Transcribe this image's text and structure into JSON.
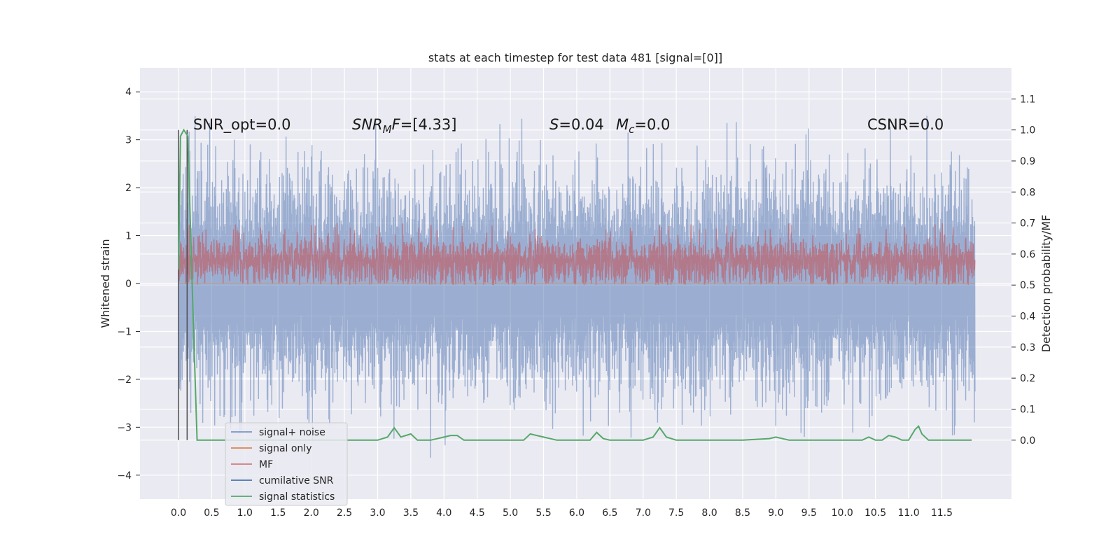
{
  "chart_data": {
    "type": "line",
    "title": "stats at each timestep for test data 481 [signal=[0]]",
    "xlabel": "",
    "ylabel": "Whitened strain",
    "y2label": "Detection probability/MF",
    "xlim": [
      -0.58,
      12.55
    ],
    "ylim": [
      -4.5,
      4.5
    ],
    "y2lim": [
      -0.19,
      1.2
    ],
    "x_ticks": [
      "0.0",
      "0.5",
      "1.0",
      "1.5",
      "2.0",
      "2.5",
      "3.0",
      "3.5",
      "4.0",
      "4.5",
      "5.0",
      "5.5",
      "6.0",
      "6.5",
      "7.0",
      "7.5",
      "8.0",
      "8.5",
      "9.0",
      "9.5",
      "10.0",
      "10.5",
      "11.0",
      "11.5"
    ],
    "y_ticks": [
      "−4",
      "−3",
      "−2",
      "−1",
      "0",
      "1",
      "2",
      "3",
      "4"
    ],
    "y2_ticks": [
      "0.0",
      "0.1",
      "0.2",
      "0.3",
      "0.4",
      "0.5",
      "0.6",
      "0.7",
      "0.8",
      "0.9",
      "1.0",
      "1.1"
    ],
    "grid": true,
    "legend_placement": "lower-left",
    "vertical_lines_x": [
      0.0,
      0.13
    ],
    "annotations": {
      "snr_opt": "SNR_opt=0.0",
      "snr_mf_main": "SNR",
      "snr_mf_sub": "M",
      "snr_mf_rest": "F=[4.33]",
      "s_main": "S",
      "s_rest": "=0.04",
      "mc_main": "M",
      "mc_sub": "c",
      "mc_rest": "=0.0",
      "csnr": "CSNR=0.0"
    },
    "series": [
      {
        "name": "signal+ noise",
        "color": "#4c72b0",
        "kind": "noise",
        "amplitude_range": [
          -4.1,
          4.1
        ],
        "t_range": [
          0.0,
          12.0
        ]
      },
      {
        "name": "signal only",
        "color": "#dd8452",
        "kind": "flat",
        "value": 0.0
      },
      {
        "name": "MF",
        "color": "#c44e52",
        "kind": "mf",
        "band": [
          0.0,
          0.75
        ]
      },
      {
        "name": "cumilative SNR",
        "color": "#4c72b0",
        "kind": "none"
      },
      {
        "name": "signal statistics",
        "color": "#55a868",
        "axis": "right",
        "x": [
          0.0,
          0.03,
          0.08,
          0.14,
          0.22,
          0.28,
          0.35,
          0.5,
          1.0,
          2.0,
          3.0,
          3.15,
          3.25,
          3.35,
          3.5,
          3.6,
          3.8,
          4.0,
          4.1,
          4.2,
          4.3,
          4.5,
          5.0,
          5.2,
          5.3,
          5.5,
          5.7,
          6.0,
          6.2,
          6.3,
          6.4,
          6.5,
          7.0,
          7.15,
          7.25,
          7.35,
          7.5,
          8.0,
          8.5,
          8.9,
          9.0,
          9.2,
          9.5,
          10.0,
          10.3,
          10.4,
          10.5,
          10.6,
          10.7,
          10.8,
          10.9,
          11.0,
          11.1,
          11.15,
          11.2,
          11.3,
          11.5,
          11.95
        ],
        "y": [
          0.55,
          0.98,
          1.0,
          0.98,
          0.4,
          0.0,
          0.0,
          0.0,
          0.0,
          0.0,
          0.0,
          0.01,
          0.04,
          0.01,
          0.02,
          0.0,
          0.0,
          0.01,
          0.015,
          0.015,
          0.0,
          0.0,
          0.0,
          0.0,
          0.02,
          0.01,
          0.0,
          0.0,
          0.0,
          0.025,
          0.005,
          0.0,
          0.0,
          0.01,
          0.04,
          0.01,
          0.0,
          0.0,
          0.0,
          0.005,
          0.01,
          0.0,
          0.0,
          0.0,
          0.0,
          0.01,
          0.0,
          0.0,
          0.015,
          0.01,
          0.0,
          0.0,
          0.035,
          0.045,
          0.02,
          0.0,
          0.0,
          0.0
        ]
      }
    ]
  }
}
